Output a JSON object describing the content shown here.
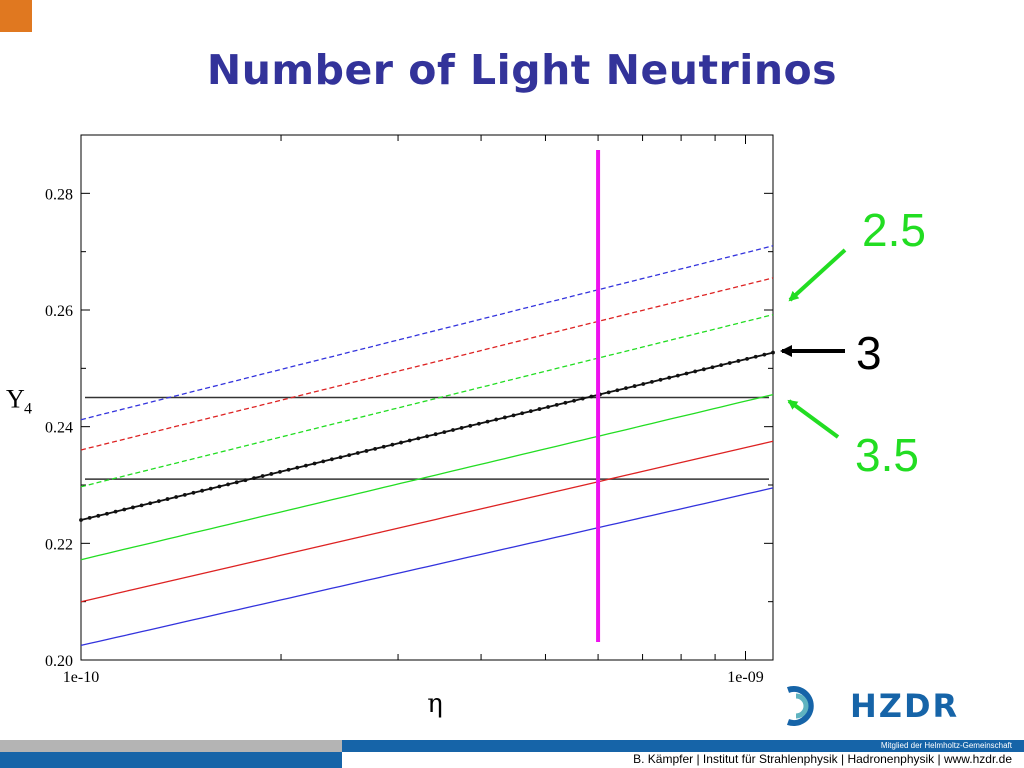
{
  "title": "Number of Light Neutrinos",
  "colors": {
    "title": "#33339a",
    "corner": "#e07820",
    "annotation_green": "#22dd22",
    "marker_line": "#ee11ee",
    "footer_blue": "#1664a8",
    "footer_grey": "#b4b4b4"
  },
  "annotations": {
    "top": "2.5",
    "middle": "3",
    "bottom": "3.5"
  },
  "chart_data": {
    "type": "line",
    "xlabel": "η",
    "ylabel": "Y",
    "ylabel_sub": "4",
    "xscale": "log",
    "xlim": [
      1e-10,
      1.1e-09
    ],
    "ylim": [
      0.2,
      0.29
    ],
    "xtick_labels": [
      "1e-10",
      "1e-09"
    ],
    "ytick_labels": [
      "0.20",
      "0.22",
      "0.24",
      "0.26",
      "0.28"
    ],
    "ytick_values": [
      0.2,
      0.22,
      0.24,
      0.26,
      0.28
    ],
    "x": [
      1e-10,
      1.1e-09
    ],
    "series": [
      {
        "color": "#3333dd",
        "style": "dashed",
        "values": [
          0.2412,
          0.271
        ]
      },
      {
        "color": "#dd2222",
        "style": "dashed",
        "values": [
          0.236,
          0.2655
        ]
      },
      {
        "color": "#22dd22",
        "style": "dashed",
        "values": [
          0.2297,
          0.2592
        ]
      },
      {
        "color": "#111111",
        "style": "dotted-markers",
        "values": [
          0.224,
          0.2527
        ]
      },
      {
        "color": "#22dd22",
        "style": "solid",
        "values": [
          0.2172,
          0.2455
        ]
      },
      {
        "color": "#dd2222",
        "style": "solid",
        "values": [
          0.21,
          0.2375
        ]
      },
      {
        "color": "#3333dd",
        "style": "solid",
        "values": [
          0.2025,
          0.2295
        ]
      }
    ],
    "hlines": [
      0.245,
      0.231
    ],
    "vline_x": 6e-10
  },
  "footer": {
    "member": "Mitglied der Helmholtz-Gemeinschaft",
    "credit": "B. Kämpfer | Institut für Strahlenphysik | Hadronenphysik | www.hzdr.de"
  },
  "logo": {
    "text": "HZDR"
  }
}
